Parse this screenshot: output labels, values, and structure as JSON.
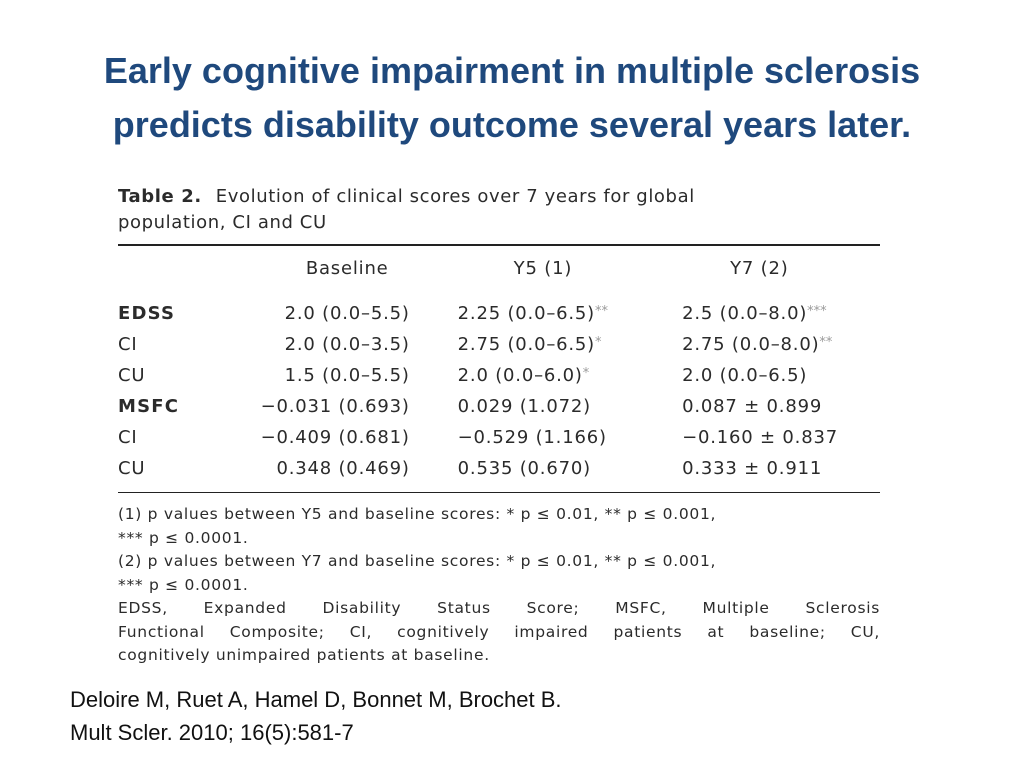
{
  "title": {
    "line1": "Early cognitive impairment in multiple sclerosis",
    "line2": "predicts disability outcome several years later."
  },
  "table": {
    "label": "Table 2.",
    "caption_line1": "Evolution of clinical scores over 7 years for global",
    "caption_line2": "population, CI and CU",
    "headers": [
      "",
      "Baseline",
      "Y5 (1)",
      "Y7 (2)"
    ],
    "rows": [
      {
        "label": "EDSS",
        "bold": true,
        "baseline": "2.0 (0.0–5.5)",
        "y5": "2.25 (0.0–6.5)",
        "y5_sig": "**",
        "y7": "2.5 (0.0–8.0)",
        "y7_sig": "***"
      },
      {
        "label": "CI",
        "bold": false,
        "baseline": "2.0 (0.0–3.5)",
        "y5": "2.75 (0.0–6.5)",
        "y5_sig": "*",
        "y7": "2.75 (0.0–8.0)",
        "y7_sig": "**"
      },
      {
        "label": "CU",
        "bold": false,
        "baseline": "1.5 (0.0–5.5)",
        "y5": "2.0 (0.0–6.0)",
        "y5_sig": "*",
        "y7": "2.0 (0.0–6.5)",
        "y7_sig": ""
      },
      {
        "label": "MSFC",
        "bold": true,
        "baseline": "−0.031 (0.693)",
        "y5": "0.029 (1.072)",
        "y5_sig": "",
        "y7": "0.087 ± 0.899",
        "y7_sig": ""
      },
      {
        "label": "CI",
        "bold": false,
        "baseline": "−0.409 (0.681)",
        "y5": "−0.529 (1.166)",
        "y5_sig": "",
        "y7": "−0.160 ± 0.837",
        "y7_sig": ""
      },
      {
        "label": "CU",
        "bold": false,
        "baseline": "0.348 (0.469)",
        "y5": "0.535 (0.670)",
        "y5_sig": "",
        "y7": "0.333 ± 0.911",
        "y7_sig": ""
      }
    ],
    "footnotes": {
      "note1_line1": "(1) p values between Y5 and baseline scores: * p ≤ 0.01, ** p ≤ 0.001,",
      "note1_line2": "*** p ≤ 0.0001.",
      "note2_line1": "(2) p values between Y7 and baseline scores: * p ≤ 0.01, ** p ≤ 0.001,",
      "note2_line2": "*** p ≤ 0.0001.",
      "abbrev_line1": "EDSS, Expanded Disability Status Score; MSFC, Multiple Sclerosis",
      "abbrev_line2": "Functional Composite; CI, cognitively impaired patients at baseline; CU,",
      "abbrev_line3": "cognitively unimpaired patients at baseline."
    }
  },
  "citation": {
    "line1": "Deloire M, Ruet A, Hamel D, Bonnet M, Brochet B.",
    "line2": "Mult Scler. 2010; 16(5):581-7"
  },
  "colors": {
    "title": "#1f497d",
    "significance": "#9a9a9a"
  }
}
